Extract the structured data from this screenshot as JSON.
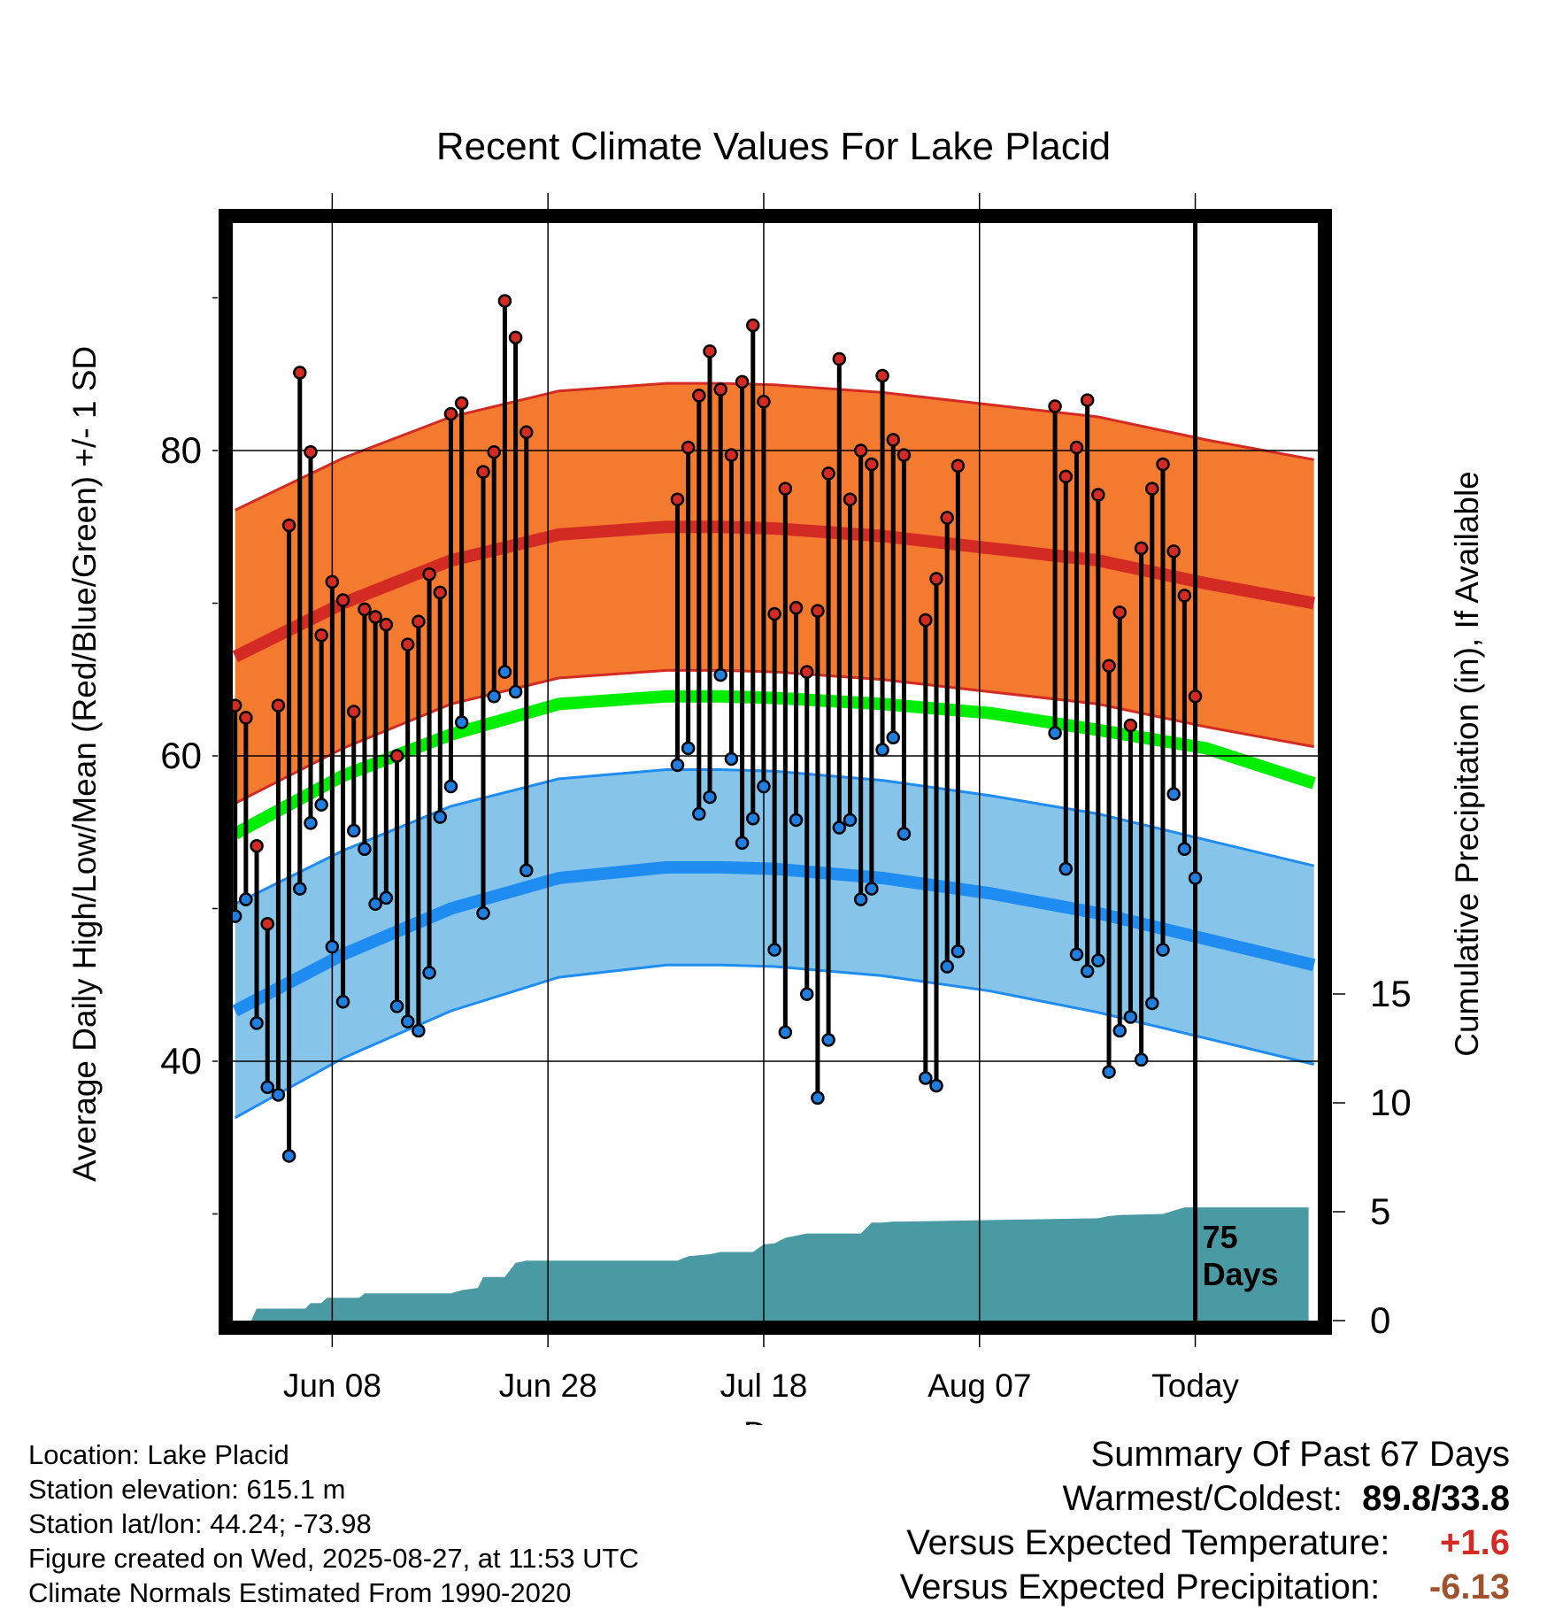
{
  "chart_data": {
    "type": "line",
    "title": "Recent Climate Values For Lake Placid",
    "xlabel": "Day",
    "ylabel": "Average Daily High/Low/Mean (Red/Blue/Green) +/- 1 SD",
    "y2label": "Cumulative Precipitation (in), If Available",
    "ylim": [
      22,
      94
    ],
    "y2lim": [
      0,
      30
    ],
    "yticks": [
      "40",
      "60",
      "80"
    ],
    "y2ticks": [
      "0",
      "5",
      "10",
      "15"
    ],
    "xticks": [
      "Jun 08",
      "Jun 28",
      "Jul 18",
      "Aug 07",
      "Today"
    ],
    "today_label": "75 Days",
    "colors": {
      "high_band": "#f47a30",
      "high_line": "#d42a24",
      "mean_line": "#00ee00",
      "low_band": "#86c4ea",
      "low_line": "#1e8cf0",
      "precip": "#4a9aa4",
      "high_point": "#d42a24",
      "low_point": "#1f7ee0"
    },
    "normals": {
      "day": [
        0,
        10,
        20,
        30,
        40,
        45,
        50,
        60,
        70,
        80,
        90,
        100
      ],
      "high": [
        66.5,
        70.0,
        72.8,
        74.5,
        75.0,
        75.0,
        74.9,
        74.4,
        73.6,
        72.8,
        71.3,
        70.0
      ],
      "high_sd": [
        9.6,
        9.5,
        9.4,
        9.4,
        9.4,
        9.4,
        9.4,
        9.4,
        9.4,
        9.4,
        9.4,
        9.4
      ],
      "mean": [
        54.9,
        58.7,
        61.4,
        63.4,
        63.9,
        63.9,
        63.8,
        63.4,
        62.8,
        61.7,
        60.5,
        58.2
      ],
      "low": [
        43.3,
        47.0,
        50.0,
        52.0,
        52.7,
        52.7,
        52.6,
        52.0,
        51.0,
        49.7,
        48.0,
        46.3
      ],
      "low_sd": [
        7.0,
        6.8,
        6.7,
        6.5,
        6.4,
        6.4,
        6.4,
        6.4,
        6.4,
        6.5,
        6.5,
        6.5
      ]
    },
    "series": [
      {
        "day": 0,
        "high": 63.3,
        "low": 49.5
      },
      {
        "day": 1,
        "high": 62.5,
        "low": 50.6
      },
      {
        "day": 2,
        "high": 54.1,
        "low": 42.5
      },
      {
        "day": 3,
        "high": 49.0,
        "low": 38.3
      },
      {
        "day": 4,
        "high": 63.3,
        "low": 37.8
      },
      {
        "day": 5,
        "high": 75.1,
        "low": 33.8
      },
      {
        "day": 6,
        "high": 85.1,
        "low": 51.3
      },
      {
        "day": 7,
        "high": 79.9,
        "low": 55.6
      },
      {
        "day": 8,
        "high": 67.9,
        "low": 56.8
      },
      {
        "day": 9,
        "high": 71.4,
        "low": 47.5
      },
      {
        "day": 10,
        "high": 70.2,
        "low": 43.9
      },
      {
        "day": 11,
        "high": 62.9,
        "low": 55.1
      },
      {
        "day": 12,
        "high": 69.6,
        "low": 53.9
      },
      {
        "day": 13,
        "high": 69.1,
        "low": 50.3
      },
      {
        "day": 14,
        "high": 68.6,
        "low": 50.7
      },
      {
        "day": 15,
        "high": 60.0,
        "low": 43.6
      },
      {
        "day": 16,
        "high": 67.3,
        "low": 42.6
      },
      {
        "day": 17,
        "high": 68.8,
        "low": 42.0
      },
      {
        "day": 18,
        "high": 71.9,
        "low": 45.8
      },
      {
        "day": 19,
        "high": 70.7,
        "low": 56.0
      },
      {
        "day": 20,
        "high": 82.4,
        "low": 58.0
      },
      {
        "day": 21,
        "high": 83.1,
        "low": 62.2
      },
      {
        "day": 23,
        "high": 78.6,
        "low": 49.7
      },
      {
        "day": 24,
        "high": 79.9,
        "low": 63.9
      },
      {
        "day": 25,
        "high": 89.8,
        "low": 65.5
      },
      {
        "day": 26,
        "high": 87.4,
        "low": 64.2
      },
      {
        "day": 27,
        "high": 81.2,
        "low": 52.5
      },
      {
        "day": 41,
        "high": 76.8,
        "low": 59.4
      },
      {
        "day": 42,
        "high": 80.2,
        "low": 60.5
      },
      {
        "day": 43,
        "high": 83.6,
        "low": 56.2
      },
      {
        "day": 44,
        "high": 86.5,
        "low": 57.3
      },
      {
        "day": 45,
        "high": 84.0,
        "low": 65.3
      },
      {
        "day": 46,
        "high": 79.7,
        "low": 59.8
      },
      {
        "day": 47,
        "high": 84.5,
        "low": 54.3
      },
      {
        "day": 48,
        "high": 88.2,
        "low": 55.9
      },
      {
        "day": 49,
        "high": 83.2,
        "low": 58.0
      },
      {
        "day": 50,
        "high": 69.3,
        "low": 47.3
      },
      {
        "day": 51,
        "high": 77.5,
        "low": 41.9
      },
      {
        "day": 52,
        "high": 69.7,
        "low": 55.8
      },
      {
        "day": 53,
        "high": 65.5,
        "low": 44.4
      },
      {
        "day": 54,
        "high": 69.5,
        "low": 37.6
      },
      {
        "day": 55,
        "high": 78.5,
        "low": 41.4
      },
      {
        "day": 56,
        "high": 86.0,
        "low": 55.3
      },
      {
        "day": 57,
        "high": 76.8,
        "low": 55.8
      },
      {
        "day": 58,
        "high": 80.0,
        "low": 50.6
      },
      {
        "day": 59,
        "high": 79.1,
        "low": 51.3
      },
      {
        "day": 60,
        "high": 84.9,
        "low": 60.4
      },
      {
        "day": 61,
        "high": 80.7,
        "low": 61.2
      },
      {
        "day": 62,
        "high": 79.7,
        "low": 54.9
      },
      {
        "day": 64,
        "high": 68.9,
        "low": 38.9
      },
      {
        "day": 65,
        "high": 71.6,
        "low": 38.4
      },
      {
        "day": 66,
        "high": 75.6,
        "low": 46.2
      },
      {
        "day": 67,
        "high": 79.0,
        "low": 47.2
      },
      {
        "day": 76,
        "high": 82.9,
        "low": 61.5
      },
      {
        "day": 77,
        "high": 78.3,
        "low": 52.6
      },
      {
        "day": 78,
        "high": 80.2,
        "low": 47.0
      },
      {
        "day": 79,
        "high": 83.3,
        "low": 45.9
      },
      {
        "day": 80,
        "high": 77.1,
        "low": 46.6
      },
      {
        "day": 81,
        "high": 65.9,
        "low": 39.3
      },
      {
        "day": 82,
        "high": 69.4,
        "low": 42.0
      },
      {
        "day": 83,
        "high": 62.0,
        "low": 42.9
      },
      {
        "day": 84,
        "high": 73.6,
        "low": 40.1
      },
      {
        "day": 85,
        "high": 77.5,
        "low": 43.8
      },
      {
        "day": 86,
        "high": 79.1,
        "low": 47.3
      },
      {
        "day": 87,
        "high": 73.4,
        "low": 57.5
      },
      {
        "day": 88,
        "high": 70.5,
        "low": 53.9
      },
      {
        "day": 89,
        "high": 63.9,
        "low": 52.0
      }
    ],
    "precip": {
      "day": [
        0,
        1.5,
        2,
        6.5,
        7,
        8,
        8.5,
        11.5,
        12,
        20,
        21,
        22.5,
        23,
        25,
        26,
        27,
        40,
        41,
        42,
        44,
        45,
        48,
        49,
        50,
        51,
        53,
        54,
        58,
        59,
        60,
        61,
        62,
        80,
        81,
        82,
        86,
        87,
        88,
        89,
        90,
        99.5
      ],
      "value": [
        0,
        0,
        0.55,
        0.55,
        0.8,
        0.8,
        1.05,
        1.05,
        1.25,
        1.25,
        1.4,
        1.5,
        2.0,
        2.0,
        2.65,
        2.75,
        2.75,
        2.75,
        2.95,
        3.05,
        3.15,
        3.15,
        3.5,
        3.55,
        3.8,
        4.0,
        4.0,
        4.0,
        4.5,
        4.5,
        4.55,
        4.55,
        4.7,
        4.8,
        4.85,
        4.9,
        5.05,
        5.2,
        5.2,
        5.2,
        5.2
      ]
    }
  },
  "footer": {
    "location": "Location: Lake Placid",
    "elevation": "Station elevation: 615.1 m",
    "latlon": "Station lat/lon: 44.24; -73.98",
    "created": "Figure created on Wed, 2025-08-27, at 11:53 UTC",
    "normals": "Climate Normals Estimated From 1990-2020"
  },
  "summary": {
    "title": "Summary Of Past 67 Days",
    "warm_cold_label": "Warmest/Coldest:",
    "warm_cold_value": "89.8/33.8",
    "temp_label": "Versus Expected Temperature:",
    "temp_value": "+1.6",
    "temp_color": "#d42a24",
    "precip_label": "Versus Expected Precipitation:",
    "precip_value": "-6.13",
    "precip_color": "#a0522d"
  }
}
